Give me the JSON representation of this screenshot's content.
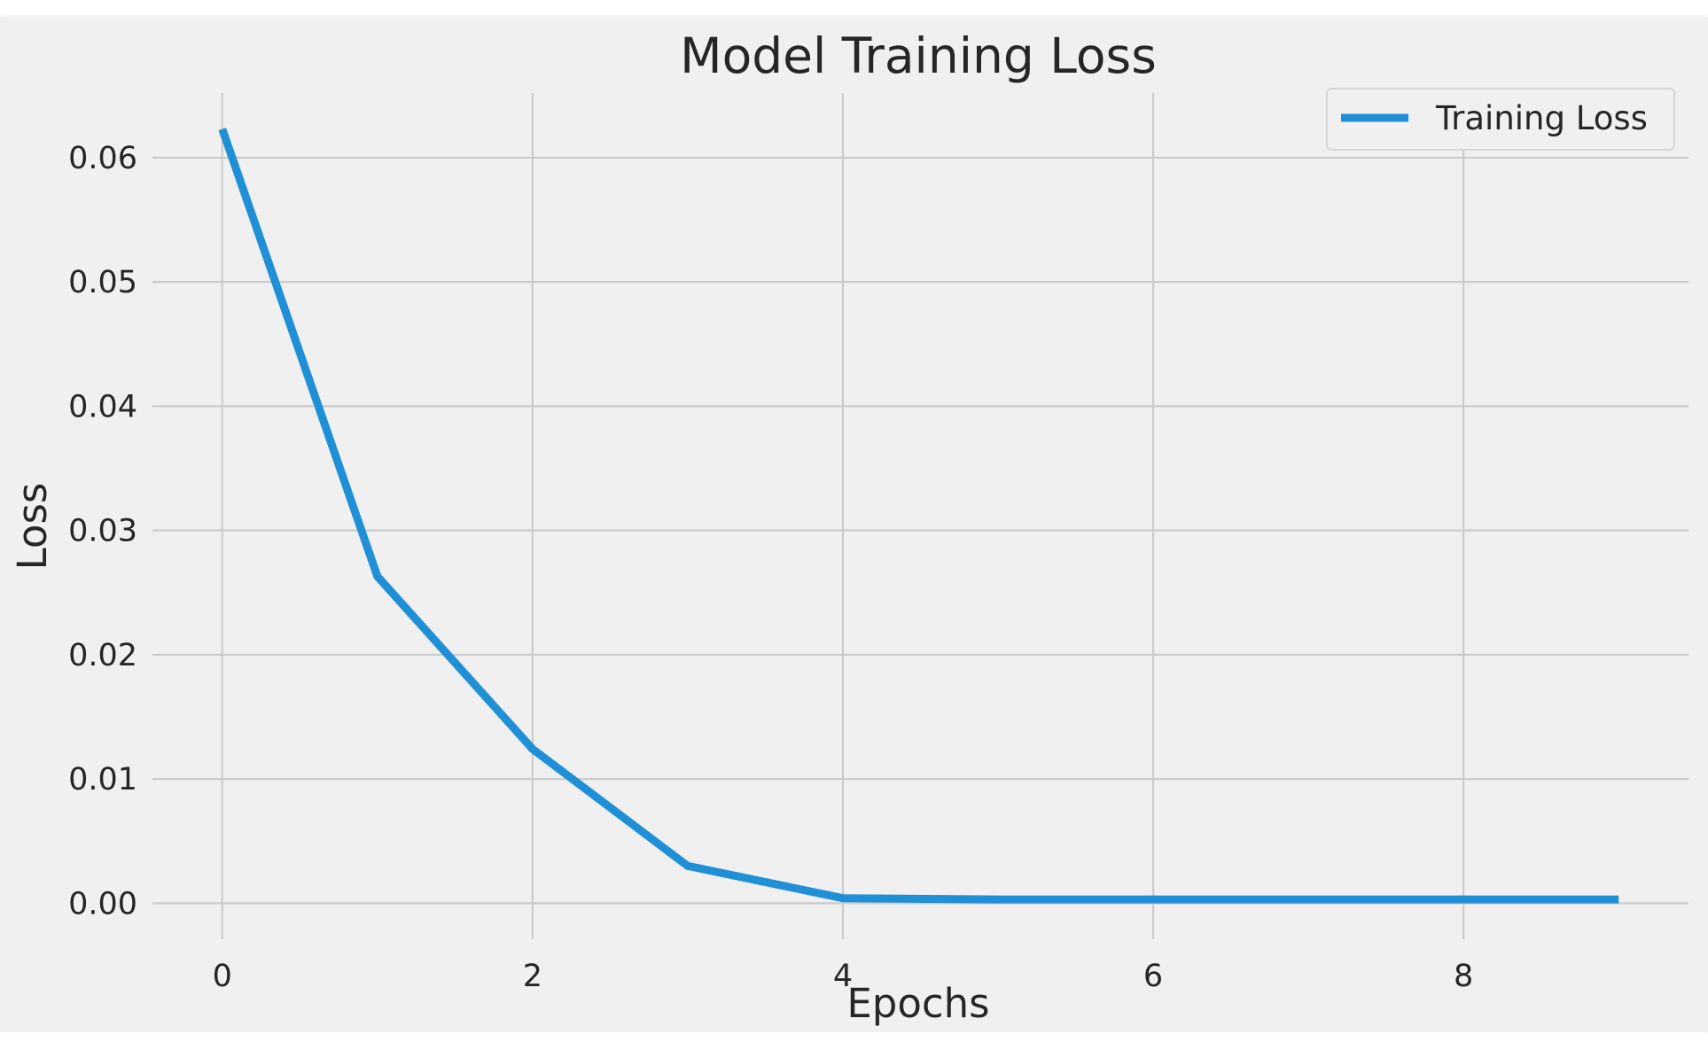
{
  "chart_data": {
    "type": "line",
    "title": "Model Training Loss",
    "xlabel": "Epochs",
    "ylabel": "Loss",
    "x": [
      0,
      1,
      2,
      3,
      4,
      5,
      6,
      7,
      8,
      9
    ],
    "series": [
      {
        "name": "Training Loss",
        "color": "#1f8fd6",
        "values": [
          0.0623,
          0.0263,
          0.0124,
          0.003,
          0.0004,
          0.0003,
          0.0003,
          0.0003,
          0.0003,
          0.0003
        ]
      }
    ],
    "xlim": [
      -0.45,
      9.45
    ],
    "ylim": [
      -0.0029,
      0.0652
    ],
    "xticks": [
      0,
      2,
      4,
      6,
      8
    ],
    "yticks": [
      0.0,
      0.01,
      0.02,
      0.03,
      0.04,
      0.05,
      0.06
    ],
    "xtick_labels": [
      "0",
      "2",
      "4",
      "6",
      "8"
    ],
    "ytick_labels": [
      "0.00",
      "0.01",
      "0.02",
      "0.03",
      "0.04",
      "0.05",
      "0.06"
    ],
    "grid": true,
    "legend_position": "top-right",
    "background_color": "#f0f0f0",
    "grid_color": "#cbcbcb"
  }
}
